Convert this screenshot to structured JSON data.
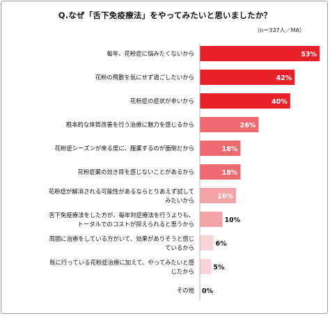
{
  "chart_data": {
    "type": "bar",
    "orientation": "horizontal",
    "title": "Q.なぜ「舌下免疫療法」をやってみたいと思いましたか？",
    "note": "（n＝337人／MA）",
    "categories": [
      [
        "毎年、花粉症に悩みたくないから"
      ],
      [
        "花粉の飛散を気にせず過ごしたいから"
      ],
      [
        "花粉症の症状が辛いから"
      ],
      [
        "根本的な体質改善を行う治療に魅力を感じるから"
      ],
      [
        "花粉症シーズンが来る度に、服薬するのが面倒だから"
      ],
      [
        "花粉症薬の効き目を感じないことがあるから"
      ],
      [
        "花粉症が解消される可能性があるならとりあえず試して",
        "みたいから"
      ],
      [
        "舌下免疫療法をした方が、毎年対症療法を行うよりも、",
        "トータルでのコストが抑えられると思うから"
      ],
      [
        "周囲に治療をしている方がいて、効果がありそうと感じ",
        "ているから"
      ],
      [
        "既に行っている花粉症治療に加えて、やってみたいと感",
        "じたから"
      ],
      [
        "その他"
      ]
    ],
    "values": [
      53,
      42,
      40,
      26,
      18,
      18,
      16,
      10,
      6,
      5,
      0
    ],
    "labels": [
      "53%",
      "42%",
      "40%",
      "26%",
      "18%",
      "18%",
      "16%",
      "10%",
      "6%",
      "5%",
      "0%"
    ],
    "colors": [
      "#e8202a",
      "#e8202a",
      "#e8202a",
      "#ee6a6e",
      "#ee6a6e",
      "#ee6a6e",
      "#f4a3a6",
      "#f4a3a6",
      "#f9d3d5",
      "#f9d3d5",
      "#f9d3d5"
    ],
    "xlim": [
      0,
      60
    ]
  }
}
